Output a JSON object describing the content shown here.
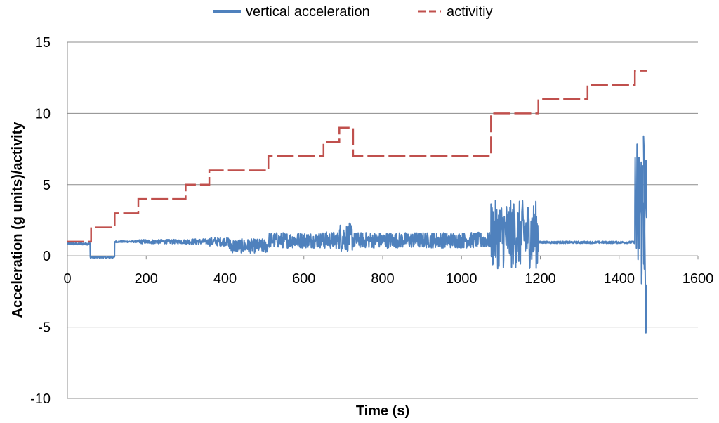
{
  "chart_data": {
    "type": "line",
    "title": "",
    "xlabel": "Time (s)",
    "ylabel": "Acceleration (g units)/activity",
    "xlim": [
      0,
      1600
    ],
    "ylim": [
      -10,
      15
    ],
    "xticks": [
      0,
      200,
      400,
      600,
      800,
      1000,
      1200,
      1400,
      1600
    ],
    "yticks": [
      -10,
      -5,
      0,
      5,
      10,
      15
    ],
    "xtick_labels": [
      "0",
      "200",
      "400",
      "600",
      "800",
      "1000",
      "1200",
      "1400",
      "1600"
    ],
    "ytick_labels": [
      "-10",
      "-5",
      "0",
      "5",
      "10",
      "15"
    ],
    "grid": "horizontal",
    "legend_position": "top-center",
    "series": [
      {
        "name": "vertical acceleration",
        "color": "#4f81bd",
        "style": "solid",
        "segments": [
          {
            "x": [
              0,
              58
            ],
            "mean": 0.85,
            "amp": 0.08
          },
          {
            "x": [
              58,
              120
            ],
            "mean": -0.1,
            "amp": 0.06
          },
          {
            "x": [
              120,
              180
            ],
            "mean": 1.0,
            "amp": 0.06
          },
          {
            "x": [
              180,
              300
            ],
            "mean": 1.0,
            "amp": 0.15
          },
          {
            "x": [
              300,
              360
            ],
            "mean": 1.0,
            "amp": 0.2
          },
          {
            "x": [
              360,
              410
            ],
            "mean": 1.0,
            "amp": 0.3
          },
          {
            "x": [
              410,
              510
            ],
            "mean": 0.7,
            "amp": 0.5
          },
          {
            "x": [
              510,
              650
            ],
            "mean": 1.1,
            "amp": 0.55
          },
          {
            "x": [
              650,
              690
            ],
            "mean": 1.1,
            "amp": 0.6
          },
          {
            "x": [
              690,
              725
            ],
            "mean": 1.3,
            "amp": 1.0
          },
          {
            "x": [
              725,
              1075
            ],
            "mean": 1.1,
            "amp": 0.55
          },
          {
            "x": [
              1075,
              1195
            ],
            "mean": 1.5,
            "amp": 2.4
          },
          {
            "x": [
              1195,
              1440
            ],
            "mean": 0.95,
            "amp": 0.08
          },
          {
            "x": [
              1440,
              1470
            ],
            "mean": 3.0,
            "amp": 5.5
          }
        ],
        "extremes": {
          "max": 8.4,
          "min": -5.4
        }
      },
      {
        "name": "activitiy",
        "color": "#c0504d",
        "style": "dashed",
        "x": [
          0,
          60,
          60,
          120,
          120,
          180,
          180,
          300,
          300,
          360,
          360,
          510,
          510,
          650,
          650,
          690,
          690,
          725,
          725,
          1075,
          1075,
          1195,
          1195,
          1320,
          1320,
          1440,
          1440,
          1470
        ],
        "y": [
          1,
          1,
          2,
          2,
          3,
          3,
          4,
          4,
          5,
          5,
          6,
          6,
          7,
          7,
          8,
          8,
          9,
          9,
          7,
          7,
          10,
          10,
          11,
          11,
          12,
          12,
          13,
          13
        ]
      }
    ]
  }
}
